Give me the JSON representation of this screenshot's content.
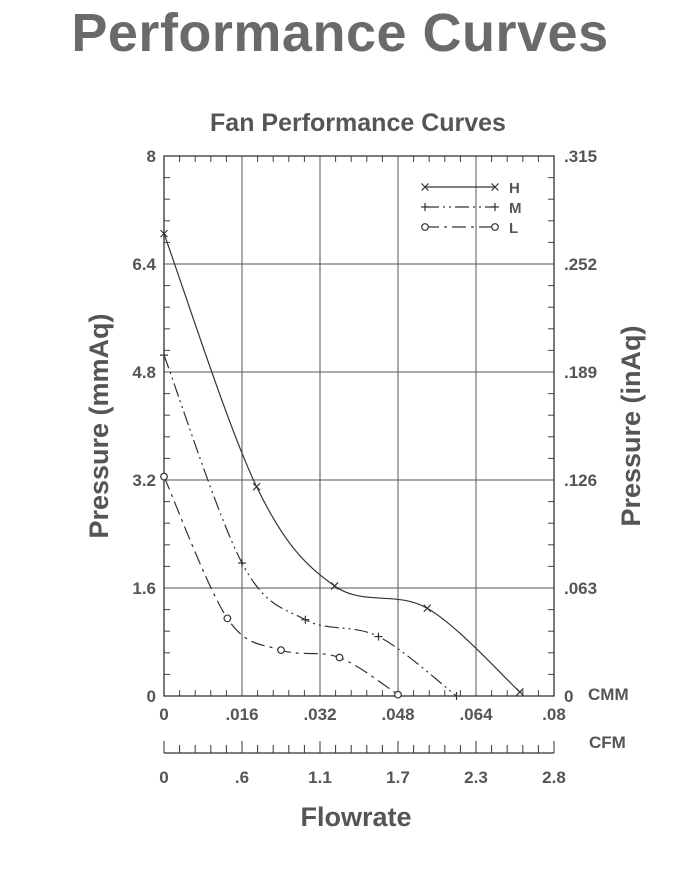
{
  "page_title": "Performance Curves",
  "chart_data": {
    "type": "line",
    "title": "Fan Performance Curves",
    "ylabel_left": "Pressure (mmAq)",
    "ylabel_right": "Pressure (inAq)",
    "xlabel": "Flowrate",
    "x_unit_cmm": "CMM",
    "x_unit_cfm": "CFM",
    "xlim": [
      0,
      0.08
    ],
    "ylim": [
      0,
      8
    ],
    "x_ticks_cmm": [
      ".016",
      ".032",
      ".048",
      ".064",
      ".08"
    ],
    "x_zero_label": "0",
    "x_ticks_cfm": [
      "0",
      ".6",
      "1.1",
      "1.7",
      "2.3",
      "2.8"
    ],
    "y_ticks_left": [
      "0",
      "1.6",
      "3.2",
      "4.8",
      "6.4",
      "8"
    ],
    "y_ticks_right": [
      "0",
      ".063",
      ".126",
      ".189",
      ".252",
      ".315"
    ],
    "legend_position": "top-right",
    "grid": true,
    "series": [
      {
        "name": "H",
        "dash": "solid",
        "marker": "x",
        "x": [
          0,
          0.019,
          0.035,
          0.054,
          0.073
        ],
        "y": [
          6.85,
          3.1,
          1.63,
          1.3,
          0.06
        ]
      },
      {
        "name": "M",
        "dash": "dashdotdot",
        "marker": "+",
        "x": [
          0,
          0.016,
          0.029,
          0.044,
          0.06
        ],
        "y": [
          5.05,
          1.97,
          1.13,
          0.88,
          0.0
        ]
      },
      {
        "name": "L",
        "dash": "dashdot",
        "marker": "o",
        "x": [
          0,
          0.013,
          0.024,
          0.036,
          0.048
        ],
        "y": [
          3.25,
          1.15,
          0.68,
          0.57,
          0.02
        ]
      }
    ]
  }
}
